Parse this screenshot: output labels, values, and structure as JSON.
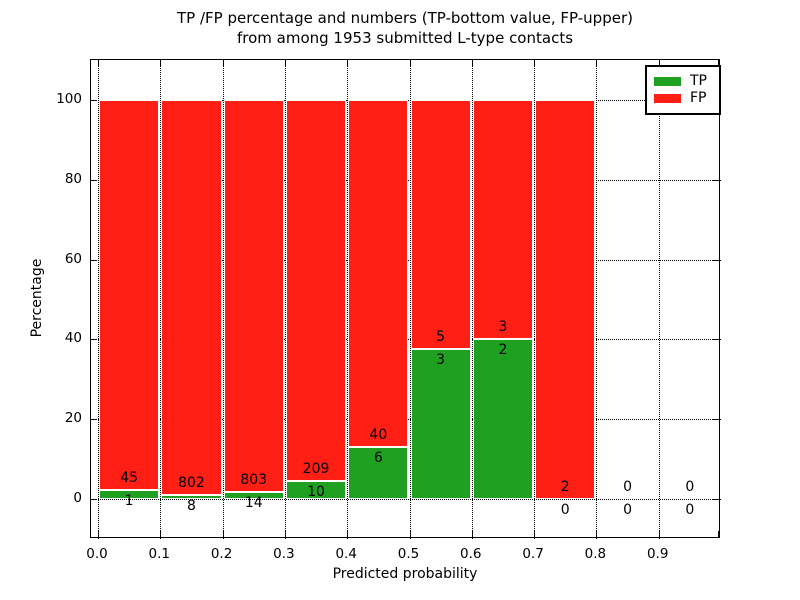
{
  "chart_data": {
    "type": "bar",
    "stacked": true,
    "normalized_to_percent": true,
    "title_lines": [
      "TP /FP percentage and numbers (TP-bottom value, FP-upper)",
      "from among 1953 submitted L-type contacts"
    ],
    "total_contacts": 1953,
    "xlabel": "Predicted probability",
    "ylabel": "Percentage",
    "x_tick_labels": [
      "0.0",
      "0.1",
      "0.2",
      "0.3",
      "0.4",
      "0.5",
      "0.6",
      "0.7",
      "0.8",
      "0.9"
    ],
    "y_tick_values": [
      0,
      20,
      40,
      60,
      80,
      100
    ],
    "ylim": [
      -10,
      110
    ],
    "xlim": [
      0.0,
      1.0
    ],
    "grid": "dotted",
    "legend_position": "upper-right",
    "bins": [
      {
        "range": [
          0.0,
          0.1
        ],
        "tp": 1,
        "fp": 45
      },
      {
        "range": [
          0.1,
          0.2
        ],
        "tp": 8,
        "fp": 802
      },
      {
        "range": [
          0.2,
          0.3
        ],
        "tp": 14,
        "fp": 803
      },
      {
        "range": [
          0.3,
          0.4
        ],
        "tp": 10,
        "fp": 209
      },
      {
        "range": [
          0.4,
          0.5
        ],
        "tp": 6,
        "fp": 40
      },
      {
        "range": [
          0.5,
          0.6
        ],
        "tp": 3,
        "fp": 5
      },
      {
        "range": [
          0.6,
          0.7
        ],
        "tp": 2,
        "fp": 3
      },
      {
        "range": [
          0.7,
          0.8
        ],
        "tp": 0,
        "fp": 2
      },
      {
        "range": [
          0.8,
          0.9
        ],
        "tp": 0,
        "fp": 0
      },
      {
        "range": [
          0.9,
          1.0
        ],
        "tp": 0,
        "fp": 0
      }
    ],
    "legend": [
      {
        "label": "TP",
        "color": "#20a020"
      },
      {
        "label": "FP",
        "color": "#ff1f14"
      }
    ],
    "colors": {
      "tp": "#20a020",
      "fp": "#ff1f14",
      "grid": "#000000",
      "background": "#ffffff"
    }
  }
}
